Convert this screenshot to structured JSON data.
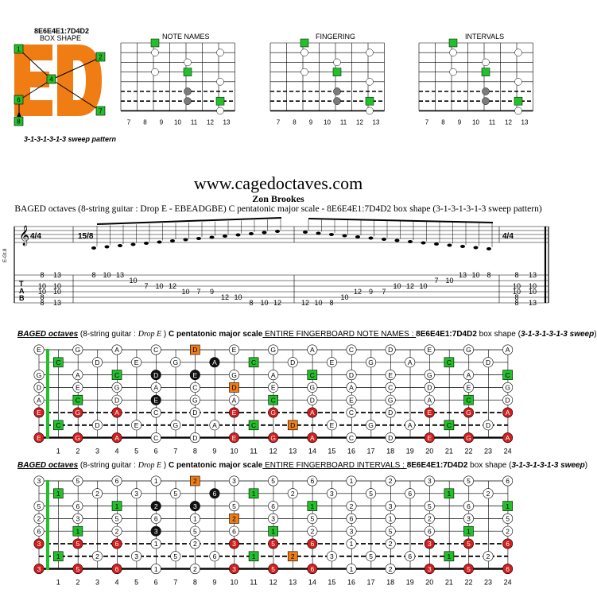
{
  "box": {
    "code": "8E6E4E1:7D4D2",
    "label": "BOX SHAPE",
    "pattern": "3-1-3-1-3-1-3 sweep pattern",
    "letters": "ED",
    "numbers": [
      "1",
      "2",
      "4",
      "7",
      "6",
      "8"
    ]
  },
  "mini_diagrams": {
    "note_names_title": "NOTE NAMES",
    "fingering_title": "FINGERING",
    "intervals_title": "INTERVALS",
    "frets": [
      "7",
      "8",
      "9",
      "10",
      "11",
      "12",
      "13"
    ]
  },
  "site_url": "www.cagedoctaves.com",
  "author": "Zon Brookes",
  "subtitle": "BAGED octaves (8-string guitar : Drop E - EBEADGBE) C pentatonic major scale - 8E6E4E1:7D4D2 box shape (3-1-3-1-3-1-3 sweep pattern)",
  "score": {
    "clef_label": "E-Gt.8",
    "time_sig_1": "4/4",
    "time_sig_2": "15/8",
    "tab_letters": [
      "T",
      "A",
      "B"
    ],
    "tab_numbers_left": [
      "8",
      "10",
      "10",
      "8",
      "8"
    ],
    "tab_numbers_left2": [
      "13",
      "10",
      "10",
      "13"
    ],
    "tab_run_1": [
      "8",
      "10",
      "13",
      "10",
      "7",
      "10",
      "12",
      "10",
      "7",
      "9",
      "12",
      "10",
      "8",
      "10",
      "12"
    ],
    "tab_run_2": [
      "12",
      "10",
      "8",
      "10",
      "12",
      "9",
      "7",
      "10",
      "12",
      "10",
      "7",
      "10",
      "13",
      "10",
      "8"
    ],
    "tab_numbers_right": [
      "8",
      "10",
      "10",
      "8",
      "8"
    ],
    "tab_numbers_right2": [
      "13",
      "10",
      "10",
      "13"
    ]
  },
  "section1": {
    "lead": "BAGED octaves",
    "rest1": " (8-string guitar : ",
    "tuning": "Drop E",
    "rest2": " ) ",
    "scale": "C pentatonic major scale",
    "mode": " ENTIRE FINGERBOARD NOTE NAMES : ",
    "code": "8E6E4E1:7D4D2",
    "shape": " box shape (",
    "pattern": "3-1-3-1-3-1-3 sweep",
    "close": ")"
  },
  "section2": {
    "lead": "BAGED octaves",
    "rest1": " (8-string guitar : ",
    "tuning": "Drop E",
    "rest2": " ) ",
    "scale": "C pentatonic major scale",
    "mode": " ENTIRE FINGERBOARD INTERVALS : ",
    "code": "8E6E4E1:7D4D2",
    "shape": " box shape (",
    "pattern": "3-1-3-1-3-1-3 sweep",
    "close": ")"
  },
  "fret_numbers": [
    "1",
    "2",
    "3",
    "4",
    "5",
    "6",
    "7",
    "8",
    "9",
    "10",
    "11",
    "12",
    "13",
    "14",
    "15",
    "16",
    "17",
    "18",
    "19",
    "20",
    "21",
    "22",
    "23",
    "24"
  ],
  "colors": {
    "green": "#22c02a",
    "orange": "#f07d14",
    "red": "#d21e1e",
    "dark": "#111111",
    "grey": "#7b7b7b"
  },
  "fingerboard_notes": [
    [
      "E",
      "",
      "G",
      "",
      "A",
      "",
      "C",
      "",
      "D",
      "",
      "E",
      "",
      "G",
      "",
      "A",
      "",
      "C",
      "",
      "D",
      "",
      "E",
      "",
      "G",
      "",
      "A"
    ],
    [
      "",
      "C",
      "",
      "D",
      "",
      "E",
      "",
      "G",
      "",
      "A",
      "",
      "C",
      "",
      "D",
      "",
      "E",
      "",
      "G",
      "",
      "A",
      "",
      "C",
      "",
      "D",
      ""
    ],
    [
      "G",
      "",
      "A",
      "",
      "C",
      "",
      "D",
      "",
      "E",
      "",
      "G",
      "",
      "A",
      "",
      "C",
      "",
      "D",
      "",
      "E",
      "",
      "G",
      "",
      "A",
      "",
      "C"
    ],
    [
      "D",
      "",
      "E",
      "",
      "G",
      "",
      "A",
      "",
      "C",
      "",
      "D",
      "",
      "E",
      "",
      "G",
      "",
      "A",
      "",
      "C",
      "",
      "D",
      "",
      "E",
      "",
      "G"
    ],
    [
      "A",
      "",
      "C",
      "",
      "D",
      "",
      "E",
      "",
      "G",
      "",
      "A",
      "",
      "C",
      "",
      "D",
      "",
      "E",
      "",
      "G",
      "",
      "A",
      "",
      "C",
      "",
      "D"
    ],
    [
      "E",
      "",
      "G",
      "",
      "A",
      "",
      "C",
      "",
      "D",
      "",
      "E",
      "",
      "G",
      "",
      "A",
      "",
      "C",
      "",
      "D",
      "",
      "E",
      "",
      "G",
      "",
      "A"
    ],
    [
      "",
      "C",
      "",
      "D",
      "",
      "E",
      "",
      "G",
      "",
      "A",
      "",
      "C",
      "",
      "D",
      "",
      "E",
      "",
      "G",
      "",
      "A",
      "",
      "C",
      "",
      "D",
      ""
    ],
    [
      "E",
      "",
      "G",
      "",
      "A",
      "",
      "C",
      "",
      "D",
      "",
      "E",
      "",
      "G",
      "",
      "A",
      "",
      "C",
      "",
      "D",
      "",
      "E",
      "",
      "G",
      "",
      "A"
    ]
  ],
  "fingerboard_intervals": [
    [
      "3",
      "",
      "5",
      "",
      "6",
      "",
      "1",
      "",
      "2",
      "",
      "3",
      "",
      "5",
      "",
      "6",
      "",
      "1",
      "",
      "2",
      "",
      "3",
      "",
      "5",
      "",
      "6"
    ],
    [
      "",
      "1",
      "",
      "2",
      "",
      "3",
      "",
      "5",
      "",
      "6",
      "",
      "1",
      "",
      "2",
      "",
      "3",
      "",
      "5",
      "",
      "6",
      "",
      "1",
      "",
      "2",
      ""
    ],
    [
      "5",
      "",
      "6",
      "",
      "1",
      "",
      "2",
      "",
      "3",
      "",
      "5",
      "",
      "6",
      "",
      "1",
      "",
      "2",
      "",
      "3",
      "",
      "5",
      "",
      "6",
      "",
      "1"
    ],
    [
      "2",
      "",
      "3",
      "",
      "5",
      "",
      "6",
      "",
      "1",
      "",
      "2",
      "",
      "3",
      "",
      "5",
      "",
      "6",
      "",
      "1",
      "",
      "2",
      "",
      "3",
      "",
      "5"
    ],
    [
      "6",
      "",
      "1",
      "",
      "2",
      "",
      "3",
      "",
      "5",
      "",
      "6",
      "",
      "1",
      "",
      "2",
      "",
      "3",
      "",
      "5",
      "",
      "6",
      "",
      "1",
      "",
      "2"
    ],
    [
      "3",
      "",
      "5",
      "",
      "6",
      "",
      "1",
      "",
      "2",
      "",
      "3",
      "",
      "5",
      "",
      "6",
      "",
      "1",
      "",
      "2",
      "",
      "3",
      "",
      "5",
      "",
      "6"
    ],
    [
      "",
      "1",
      "",
      "2",
      "",
      "3",
      "",
      "5",
      "",
      "6",
      "",
      "1",
      "",
      "2",
      "",
      "3",
      "",
      "5",
      "",
      "6",
      "",
      "1",
      "",
      "2",
      ""
    ],
    [
      "3",
      "",
      "5",
      "",
      "6",
      "",
      "1",
      "",
      "2",
      "",
      "3",
      "",
      "5",
      "",
      "6",
      "",
      "1",
      "",
      "2",
      "",
      "3",
      "",
      "5",
      "",
      "6"
    ]
  ]
}
